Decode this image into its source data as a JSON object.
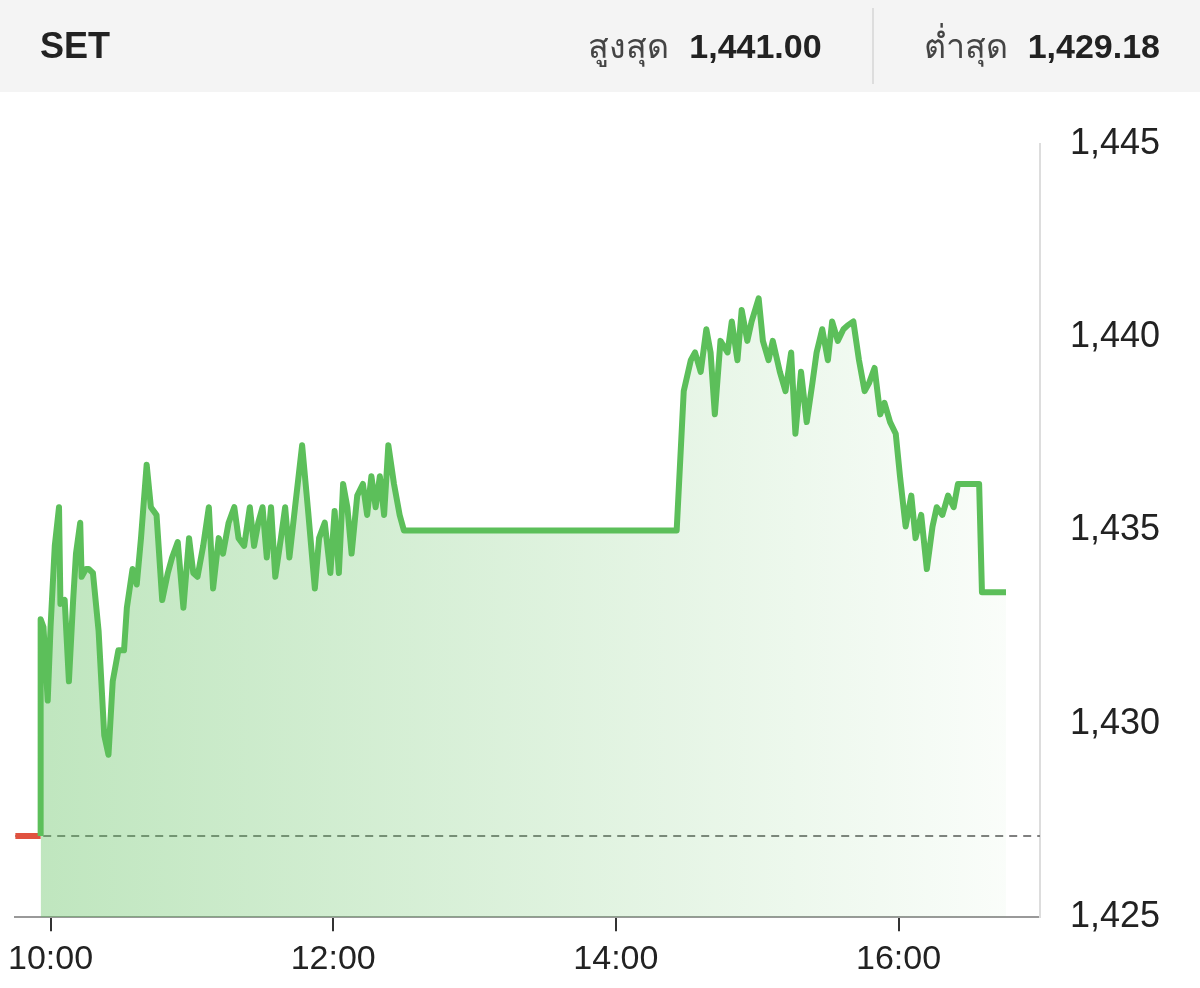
{
  "chart_data": {
    "type": "area",
    "title": "SET",
    "annotations": [
      "สูงสุด 1,441.00",
      "ต่ำสุด 1,429.18"
    ],
    "xlim": [
      9.75,
      17.0
    ],
    "xticks": [
      {
        "value": 10,
        "label": "10:00"
      },
      {
        "value": 12,
        "label": "12:00"
      },
      {
        "value": 14,
        "label": "14:00"
      },
      {
        "value": 16,
        "label": "16:00"
      }
    ],
    "ylim": [
      1425,
      1445
    ],
    "yticks": [
      {
        "value": 1425,
        "label": "1,425"
      },
      {
        "value": 1430,
        "label": "1,430"
      },
      {
        "value": 1435,
        "label": "1,435"
      },
      {
        "value": 1440,
        "label": "1,440"
      },
      {
        "value": 1445,
        "label": "1,445"
      }
    ],
    "grid": false,
    "legend": false,
    "marker": "none",
    "line_style": "solid",
    "ref_lines": [
      {
        "axis": "y",
        "value": 1427.1,
        "color": "#555555",
        "line_style": "dashed"
      }
    ],
    "series": [
      {
        "color": "#5cbf5a",
        "x": [
          9.93,
          9.93,
          9.95,
          9.98,
          10.0,
          10.03,
          10.06,
          10.07,
          10.1,
          10.13,
          10.16,
          10.18,
          10.21,
          10.22,
          10.25,
          10.27,
          10.3,
          10.34,
          10.38,
          10.41,
          10.44,
          10.48,
          10.52,
          10.54,
          10.58,
          10.61,
          10.64,
          10.68,
          10.71,
          10.75,
          10.79,
          10.83,
          10.86,
          10.9,
          10.94,
          10.98,
          11.01,
          11.04,
          11.08,
          11.12,
          11.15,
          11.19,
          11.22,
          11.26,
          11.3,
          11.33,
          11.37,
          11.41,
          11.44,
          11.47,
          11.5,
          11.53,
          11.56,
          11.59,
          11.63,
          11.66,
          11.69,
          11.73,
          11.78,
          11.82,
          11.87,
          11.9,
          11.94,
          11.98,
          12.01,
          12.04,
          12.07,
          12.1,
          12.13,
          12.17,
          12.21,
          12.24,
          12.27,
          12.3,
          12.33,
          12.36,
          12.39,
          12.43,
          12.47,
          12.5,
          14.43,
          14.48,
          14.53,
          14.56,
          14.6,
          14.64,
          14.67,
          14.7,
          14.74,
          14.79,
          14.82,
          14.86,
          14.89,
          14.93,
          14.96,
          15.01,
          15.04,
          15.08,
          15.11,
          15.16,
          15.2,
          15.24,
          15.27,
          15.31,
          15.35,
          15.39,
          15.42,
          15.46,
          15.5,
          15.53,
          15.57,
          15.61,
          15.64,
          15.68,
          15.72,
          15.76,
          15.79,
          15.83,
          15.87,
          15.9,
          15.94,
          15.98,
          16.01,
          16.05,
          16.09,
          16.12,
          16.16,
          16.2,
          16.24,
          16.27,
          16.31,
          16.35,
          16.39,
          16.42,
          16.46,
          16.57,
          16.59,
          16.76
        ],
        "values": [
          1427.1,
          1432.7,
          1432.5,
          1430.6,
          1432.5,
          1434.6,
          1435.6,
          1433.1,
          1433.2,
          1431.1,
          1433.2,
          1434.4,
          1435.2,
          1433.8,
          1434.0,
          1434.0,
          1433.9,
          1432.4,
          1429.7,
          1429.2,
          1431.1,
          1431.9,
          1431.9,
          1433.0,
          1434.0,
          1433.6,
          1434.8,
          1436.7,
          1435.6,
          1435.4,
          1433.2,
          1433.9,
          1434.3,
          1434.7,
          1433.0,
          1434.8,
          1433.9,
          1433.8,
          1434.6,
          1435.6,
          1433.5,
          1434.8,
          1434.4,
          1435.2,
          1435.6,
          1434.8,
          1434.6,
          1435.6,
          1434.6,
          1435.2,
          1435.6,
          1434.3,
          1435.6,
          1433.8,
          1434.8,
          1435.6,
          1434.3,
          1435.6,
          1437.2,
          1435.6,
          1433.5,
          1434.8,
          1435.2,
          1433.9,
          1435.5,
          1433.9,
          1436.2,
          1435.6,
          1434.4,
          1435.9,
          1436.2,
          1435.4,
          1436.4,
          1435.6,
          1436.4,
          1435.4,
          1437.2,
          1436.2,
          1435.4,
          1435.0,
          1435.0,
          1438.6,
          1439.4,
          1439.6,
          1439.1,
          1440.2,
          1439.6,
          1438.0,
          1439.9,
          1439.6,
          1440.4,
          1439.4,
          1440.7,
          1439.9,
          1440.4,
          1441.0,
          1439.9,
          1439.4,
          1439.9,
          1439.1,
          1438.6,
          1439.6,
          1437.5,
          1439.1,
          1437.8,
          1438.8,
          1439.6,
          1440.2,
          1439.4,
          1440.4,
          1439.9,
          1440.2,
          1440.3,
          1440.4,
          1439.4,
          1438.6,
          1438.8,
          1439.2,
          1438.0,
          1438.3,
          1437.8,
          1437.5,
          1436.4,
          1435.1,
          1435.9,
          1434.8,
          1435.4,
          1434.0,
          1435.1,
          1435.6,
          1435.4,
          1435.9,
          1435.6,
          1436.2,
          1436.2,
          1436.2,
          1433.4,
          1433.4
        ]
      },
      {
        "type": "line",
        "color": "#e0523f",
        "x": [
          9.75,
          9.93
        ],
        "values": [
          1427.1,
          1427.1
        ]
      }
    ]
  }
}
